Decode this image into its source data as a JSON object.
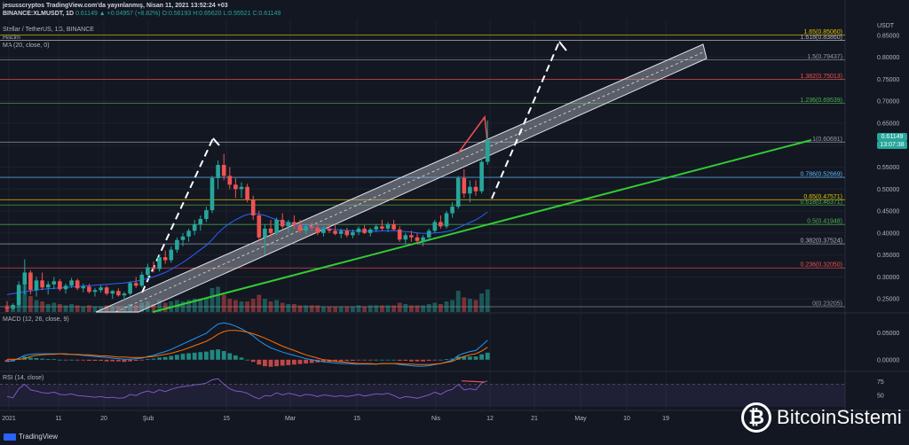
{
  "header": {
    "line1": "jesusscryptos TradingView.com'da yayınlanmış, Nisan 11, 2021 13:52:24 +03",
    "line2_symbol": "BINANCE:XLMUSDT, 1D",
    "line2_values": "0.61149 ▲ +0.04957 (+8.82%) O:0.56193 H:0.65620 L:0.55521 C:0.61149",
    "line3": "Stellar / TetherUS, 1G, BINANCE",
    "line4": "Hacim",
    "line5": "MA (20, close, 0)",
    "currency": "USDT"
  },
  "price_tags": {
    "current_price": "0.61149",
    "countdown": "13:07:38"
  },
  "macd": {
    "title": "MACD (12, 26, close, 9)",
    "ticks": [
      "0.05000",
      "0.00000"
    ]
  },
  "rsi": {
    "title": "RSI (14, close)",
    "ticks": [
      "75",
      "50"
    ]
  },
  "footer": {
    "tradingview": "TradingView",
    "brand": "BitcoinSistemi",
    "brand_icon": "₿"
  },
  "colors": {
    "up": "#26a69a",
    "down": "#ef5350",
    "ma": "#2962ff",
    "channel": "#e0e3eb",
    "trend": "#33cc33",
    "macd_line": "#2196f3",
    "signal_line": "#ff6d00",
    "rsi": "#7e57c2"
  },
  "chart_data": {
    "type": "candlestick",
    "title": "Stellar / TetherUS, 1G, BINANCE",
    "y_ticks": [
      "0.85000",
      "0.80000",
      "0.75000",
      "0.70000",
      "0.65000",
      "0.60000",
      "0.55000",
      "0.50000",
      "0.45000",
      "0.40000",
      "0.35000",
      "0.30000",
      "0.25000"
    ],
    "x_ticks": [
      "2021",
      "11",
      "20",
      "Şub",
      "15",
      "Mar",
      "15",
      "Nis",
      "12",
      "21",
      "May",
      "10",
      "19"
    ],
    "ylim": [
      0.22,
      0.87
    ],
    "fib_levels": [
      {
        "label": "1.65(0.85060)",
        "value": 0.8506,
        "color": "#e5c100"
      },
      {
        "label": "1.618(0.83860)",
        "value": 0.8386,
        "color": "#b2b5be"
      },
      {
        "label": "1.5(0.79437)",
        "value": 0.79437,
        "color": "#9598a1"
      },
      {
        "label": "1.382(0.75013)",
        "value": 0.75013,
        "color": "#ef5350"
      },
      {
        "label": "1.236(0.69539)",
        "value": 0.69539,
        "color": "#4caf50"
      },
      {
        "label": "1(0.60691)",
        "value": 0.60691,
        "color": "#9598a1"
      },
      {
        "label": "0.786(0.52669)",
        "value": 0.52669,
        "color": "#64b5f6"
      },
      {
        "label": "0.65(0.47571)",
        "value": 0.47571,
        "color": "#e5c100"
      },
      {
        "label": "0.618(0.46371)",
        "value": 0.46371,
        "color": "#4caf50"
      },
      {
        "label": "0.5(0.41948)",
        "value": 0.41948,
        "color": "#4caf50"
      },
      {
        "label": "0.382(0.37524)",
        "value": 0.37524,
        "color": "#b2b5be"
      },
      {
        "label": "0.236(0.32050)",
        "value": 0.3205,
        "color": "#ef5350"
      },
      {
        "label": "0(0.23205)",
        "value": 0.23205,
        "color": "#9598a1"
      }
    ],
    "candles": [
      [
        0.23,
        0.245,
        0.22,
        0.228
      ],
      [
        0.228,
        0.24,
        0.225,
        0.236
      ],
      [
        0.236,
        0.29,
        0.23,
        0.282
      ],
      [
        0.282,
        0.34,
        0.26,
        0.31
      ],
      [
        0.31,
        0.315,
        0.26,
        0.27
      ],
      [
        0.27,
        0.3,
        0.255,
        0.292
      ],
      [
        0.292,
        0.31,
        0.27,
        0.276
      ],
      [
        0.276,
        0.29,
        0.26,
        0.283
      ],
      [
        0.283,
        0.3,
        0.272,
        0.29
      ],
      [
        0.29,
        0.295,
        0.268,
        0.272
      ],
      [
        0.272,
        0.285,
        0.262,
        0.28
      ],
      [
        0.28,
        0.298,
        0.275,
        0.292
      ],
      [
        0.292,
        0.296,
        0.27,
        0.274
      ],
      [
        0.274,
        0.285,
        0.265,
        0.278
      ],
      [
        0.278,
        0.284,
        0.262,
        0.266
      ],
      [
        0.266,
        0.275,
        0.255,
        0.27
      ],
      [
        0.27,
        0.282,
        0.264,
        0.276
      ],
      [
        0.276,
        0.28,
        0.258,
        0.262
      ],
      [
        0.262,
        0.27,
        0.25,
        0.268
      ],
      [
        0.268,
        0.274,
        0.255,
        0.258
      ],
      [
        0.258,
        0.266,
        0.248,
        0.262
      ],
      [
        0.262,
        0.29,
        0.258,
        0.286
      ],
      [
        0.286,
        0.3,
        0.275,
        0.28
      ],
      [
        0.28,
        0.312,
        0.276,
        0.305
      ],
      [
        0.305,
        0.33,
        0.298,
        0.322
      ],
      [
        0.322,
        0.335,
        0.31,
        0.318
      ],
      [
        0.318,
        0.35,
        0.312,
        0.345
      ],
      [
        0.345,
        0.36,
        0.33,
        0.338
      ],
      [
        0.338,
        0.37,
        0.332,
        0.362
      ],
      [
        0.362,
        0.39,
        0.355,
        0.384
      ],
      [
        0.384,
        0.4,
        0.37,
        0.392
      ],
      [
        0.392,
        0.41,
        0.38,
        0.405
      ],
      [
        0.405,
        0.43,
        0.395,
        0.42
      ],
      [
        0.42,
        0.44,
        0.405,
        0.432
      ],
      [
        0.432,
        0.46,
        0.425,
        0.452
      ],
      [
        0.452,
        0.53,
        0.445,
        0.525
      ],
      [
        0.525,
        0.565,
        0.5,
        0.555
      ],
      [
        0.555,
        0.58,
        0.52,
        0.53
      ],
      [
        0.53,
        0.55,
        0.5,
        0.51
      ],
      [
        0.51,
        0.525,
        0.48,
        0.5
      ],
      [
        0.5,
        0.515,
        0.48,
        0.505
      ],
      [
        0.505,
        0.512,
        0.47,
        0.475
      ],
      [
        0.475,
        0.485,
        0.43,
        0.44
      ],
      [
        0.44,
        0.45,
        0.38,
        0.39
      ],
      [
        0.39,
        0.42,
        0.35,
        0.41
      ],
      [
        0.41,
        0.43,
        0.39,
        0.4
      ],
      [
        0.4,
        0.435,
        0.395,
        0.43
      ],
      [
        0.43,
        0.445,
        0.41,
        0.415
      ],
      [
        0.415,
        0.43,
        0.4,
        0.425
      ],
      [
        0.425,
        0.44,
        0.41,
        0.418
      ],
      [
        0.418,
        0.43,
        0.4,
        0.405
      ],
      [
        0.405,
        0.42,
        0.398,
        0.415
      ],
      [
        0.415,
        0.425,
        0.405,
        0.412
      ],
      [
        0.412,
        0.42,
        0.395,
        0.4
      ],
      [
        0.4,
        0.415,
        0.392,
        0.41
      ],
      [
        0.41,
        0.42,
        0.4,
        0.405
      ],
      [
        0.405,
        0.418,
        0.395,
        0.398
      ],
      [
        0.398,
        0.41,
        0.388,
        0.405
      ],
      [
        0.405,
        0.412,
        0.39,
        0.395
      ],
      [
        0.395,
        0.408,
        0.388,
        0.402
      ],
      [
        0.402,
        0.415,
        0.395,
        0.41
      ],
      [
        0.41,
        0.418,
        0.398,
        0.4
      ],
      [
        0.4,
        0.412,
        0.392,
        0.408
      ],
      [
        0.408,
        0.42,
        0.402,
        0.415
      ],
      [
        0.415,
        0.43,
        0.405,
        0.41
      ],
      [
        0.41,
        0.425,
        0.402,
        0.42
      ],
      [
        0.42,
        0.43,
        0.405,
        0.408
      ],
      [
        0.408,
        0.415,
        0.38,
        0.385
      ],
      [
        0.385,
        0.4,
        0.375,
        0.395
      ],
      [
        0.395,
        0.405,
        0.38,
        0.39
      ],
      [
        0.39,
        0.4,
        0.375,
        0.382
      ],
      [
        0.382,
        0.395,
        0.37,
        0.39
      ],
      [
        0.39,
        0.41,
        0.385,
        0.405
      ],
      [
        0.405,
        0.43,
        0.4,
        0.425
      ],
      [
        0.425,
        0.44,
        0.41,
        0.415
      ],
      [
        0.415,
        0.45,
        0.41,
        0.445
      ],
      [
        0.445,
        0.47,
        0.435,
        0.46
      ],
      [
        0.46,
        0.53,
        0.455,
        0.525
      ],
      [
        0.525,
        0.545,
        0.48,
        0.49
      ],
      [
        0.49,
        0.52,
        0.47,
        0.505
      ],
      [
        0.505,
        0.52,
        0.485,
        0.495
      ],
      [
        0.495,
        0.57,
        0.49,
        0.562
      ],
      [
        0.562,
        0.6562,
        0.5552,
        0.6115
      ]
    ],
    "ma20": [
      0.26,
      0.262,
      0.264,
      0.266,
      0.268,
      0.27,
      0.272,
      0.273,
      0.274,
      0.275,
      0.276,
      0.277,
      0.278,
      0.279,
      0.28,
      0.281,
      0.282,
      0.283,
      0.284,
      0.285,
      0.286,
      0.288,
      0.29,
      0.293,
      0.297,
      0.3,
      0.305,
      0.31,
      0.317,
      0.325,
      0.333,
      0.342,
      0.352,
      0.362,
      0.372,
      0.385,
      0.4,
      0.412,
      0.422,
      0.43,
      0.437,
      0.442,
      0.444,
      0.443,
      0.44,
      0.435,
      0.43,
      0.426,
      0.423,
      0.42,
      0.418,
      0.416,
      0.414,
      0.412,
      0.41,
      0.409,
      0.408,
      0.407,
      0.406,
      0.405,
      0.404,
      0.404,
      0.404,
      0.404,
      0.405,
      0.405,
      0.405,
      0.404,
      0.403,
      0.402,
      0.4,
      0.399,
      0.399,
      0.4,
      0.401,
      0.403,
      0.406,
      0.412,
      0.418,
      0.424,
      0.43,
      0.438,
      0.448
    ],
    "volume": [
      0.5,
      0.3,
      1.6,
      2.0,
      1.2,
      0.9,
      0.8,
      0.6,
      0.7,
      0.6,
      0.5,
      0.6,
      0.5,
      0.4,
      0.5,
      0.4,
      0.4,
      0.5,
      0.4,
      0.4,
      0.4,
      0.6,
      0.5,
      0.7,
      0.8,
      0.6,
      0.9,
      0.7,
      0.8,
      0.9,
      0.8,
      0.9,
      1.0,
      1.0,
      1.1,
      1.8,
      1.9,
      1.3,
      1.0,
      0.9,
      0.8,
      0.8,
      1.0,
      1.3,
      1.0,
      0.8,
      0.9,
      0.7,
      0.6,
      0.6,
      0.5,
      0.5,
      0.5,
      0.5,
      0.4,
      0.4,
      0.4,
      0.4,
      0.4,
      0.4,
      0.5,
      0.4,
      0.5,
      0.5,
      0.5,
      0.5,
      0.5,
      0.7,
      0.6,
      0.5,
      0.5,
      0.5,
      0.6,
      0.7,
      0.6,
      0.8,
      0.9,
      1.6,
      1.1,
      1.0,
      0.9,
      1.4,
      1.7
    ],
    "macd_hist": [
      -0.004,
      -0.003,
      0.002,
      0.006,
      0.004,
      0.003,
      0.002,
      0.001,
      0.001,
      0.0,
      -0.001,
      0.0,
      -0.001,
      -0.001,
      -0.002,
      -0.002,
      -0.002,
      -0.003,
      -0.003,
      -0.003,
      -0.004,
      -0.003,
      -0.002,
      -0.001,
      0.001,
      0.002,
      0.004,
      0.005,
      0.007,
      0.009,
      0.011,
      0.012,
      0.013,
      0.014,
      0.015,
      0.018,
      0.019,
      0.016,
      0.012,
      0.008,
      0.004,
      0.0,
      -0.004,
      -0.009,
      -0.012,
      -0.013,
      -0.012,
      -0.011,
      -0.01,
      -0.009,
      -0.008,
      -0.007,
      -0.006,
      -0.005,
      -0.004,
      -0.004,
      -0.003,
      -0.003,
      -0.002,
      -0.002,
      -0.001,
      -0.001,
      -0.001,
      0.0,
      0.0,
      0.0,
      0.0,
      -0.002,
      -0.002,
      -0.003,
      -0.003,
      -0.003,
      -0.002,
      -0.001,
      0.0,
      0.001,
      0.002,
      0.006,
      0.006,
      0.006,
      0.006,
      0.01,
      0.013
    ],
    "macd_line": [
      -0.003,
      -0.002,
      0.003,
      0.008,
      0.01,
      0.011,
      0.011,
      0.011,
      0.011,
      0.011,
      0.01,
      0.01,
      0.009,
      0.008,
      0.007,
      0.006,
      0.005,
      0.004,
      0.003,
      0.002,
      0.001,
      0.001,
      0.002,
      0.003,
      0.006,
      0.008,
      0.012,
      0.015,
      0.019,
      0.024,
      0.029,
      0.034,
      0.039,
      0.044,
      0.049,
      0.058,
      0.066,
      0.068,
      0.066,
      0.062,
      0.057,
      0.051,
      0.044,
      0.035,
      0.028,
      0.022,
      0.018,
      0.014,
      0.011,
      0.008,
      0.005,
      0.002,
      0.0,
      -0.002,
      -0.004,
      -0.005,
      -0.006,
      -0.007,
      -0.007,
      -0.008,
      -0.008,
      -0.008,
      -0.008,
      -0.008,
      -0.007,
      -0.007,
      -0.007,
      -0.009,
      -0.01,
      -0.011,
      -0.012,
      -0.012,
      -0.011,
      -0.009,
      -0.007,
      -0.004,
      -0.001,
      0.008,
      0.012,
      0.015,
      0.017,
      0.026,
      0.036
    ],
    "signal_line": [
      0.001,
      0.001,
      0.001,
      0.002,
      0.006,
      0.008,
      0.009,
      0.01,
      0.01,
      0.011,
      0.011,
      0.01,
      0.01,
      0.009,
      0.009,
      0.008,
      0.007,
      0.007,
      0.006,
      0.005,
      0.005,
      0.004,
      0.004,
      0.004,
      0.005,
      0.006,
      0.008,
      0.01,
      0.012,
      0.015,
      0.018,
      0.022,
      0.026,
      0.03,
      0.034,
      0.04,
      0.047,
      0.052,
      0.054,
      0.054,
      0.053,
      0.051,
      0.048,
      0.044,
      0.04,
      0.035,
      0.03,
      0.025,
      0.021,
      0.017,
      0.013,
      0.009,
      0.006,
      0.003,
      0.0,
      -0.001,
      -0.003,
      -0.004,
      -0.005,
      -0.006,
      -0.007,
      -0.007,
      -0.007,
      -0.008,
      -0.007,
      -0.007,
      -0.007,
      -0.007,
      -0.008,
      -0.008,
      -0.009,
      -0.009,
      -0.009,
      -0.008,
      -0.007,
      -0.005,
      -0.003,
      0.002,
      0.006,
      0.009,
      0.011,
      0.016,
      0.023
    ],
    "rsi": [
      48,
      46,
      62,
      70,
      60,
      58,
      55,
      54,
      56,
      52,
      51,
      53,
      50,
      49,
      48,
      47,
      48,
      46,
      47,
      45,
      46,
      52,
      50,
      55,
      58,
      55,
      60,
      57,
      61,
      64,
      66,
      67,
      69,
      70,
      72,
      78,
      80,
      70,
      62,
      58,
      57,
      54,
      48,
      44,
      50,
      49,
      55,
      51,
      54,
      52,
      49,
      52,
      51,
      48,
      51,
      50,
      48,
      50,
      48,
      50,
      52,
      49,
      51,
      53,
      52,
      54,
      50,
      45,
      48,
      47,
      45,
      48,
      51,
      56,
      52,
      58,
      61,
      70,
      60,
      62,
      60,
      72,
      76
    ]
  }
}
